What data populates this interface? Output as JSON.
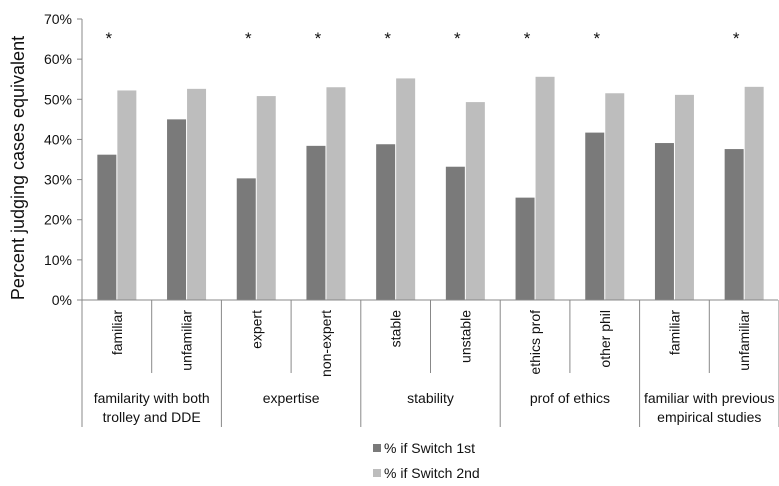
{
  "chart_data": {
    "type": "bar",
    "title": "",
    "xlabel": "",
    "ylabel": "Percent judging cases equivalent",
    "ylim": [
      0,
      70
    ],
    "yticks": [
      0,
      10,
      20,
      30,
      40,
      50,
      60,
      70
    ],
    "ytick_labels": [
      "0%",
      "10%",
      "20%",
      "30%",
      "40%",
      "50%",
      "60%",
      "70%"
    ],
    "categories": [
      "familiar",
      "unfamiliar",
      "expert",
      "non-expert",
      "stable",
      "unstable",
      "ethics prof",
      "other phil",
      "familiar",
      "unfamiliar"
    ],
    "groups": [
      {
        "lines": [
          "familarity with both",
          "trolley and DDE"
        ],
        "span": 2
      },
      {
        "lines": [
          "expertise"
        ],
        "span": 2
      },
      {
        "lines": [
          "stability"
        ],
        "span": 2
      },
      {
        "lines": [
          "prof of ethics"
        ],
        "span": 2
      },
      {
        "lines": [
          "familiar with previous",
          "empirical studies"
        ],
        "span": 2
      }
    ],
    "series": [
      {
        "name": "% if Switch 1st",
        "color": "#7a7a7a",
        "values": [
          36.2,
          45.0,
          30.3,
          38.4,
          38.8,
          33.2,
          25.5,
          41.7,
          39.1,
          37.6
        ]
      },
      {
        "name": "% if Switch 2nd",
        "color": "#bdbdbd",
        "values": [
          52.2,
          52.6,
          50.8,
          53.0,
          55.2,
          49.3,
          55.6,
          51.5,
          51.1,
          53.1
        ]
      }
    ],
    "annotations": {
      "symbol": "*",
      "marked": [
        true,
        false,
        true,
        true,
        true,
        true,
        true,
        true,
        false,
        true
      ]
    },
    "grid": false,
    "legend_position": "bottom"
  }
}
